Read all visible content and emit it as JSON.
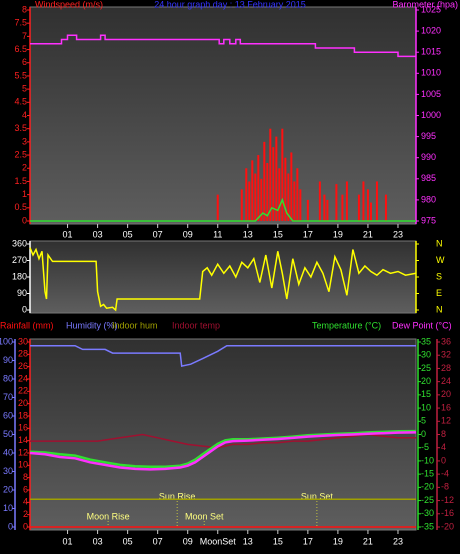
{
  "chart_data": [
    {
      "type": "combo",
      "title": "24 hour graph day : 13 February 2015",
      "xlim": [
        -1.5,
        24.2
      ],
      "xticks": [
        {
          "value": 1,
          "label": "01"
        },
        {
          "value": 3,
          "label": "03"
        },
        {
          "value": 5,
          "label": "05"
        },
        {
          "value": 7,
          "label": "07"
        },
        {
          "value": 9,
          "label": "09"
        },
        {
          "value": 11,
          "label": "11"
        },
        {
          "value": 13,
          "label": "13"
        },
        {
          "value": 15,
          "label": "15"
        },
        {
          "value": 17,
          "label": "17"
        },
        {
          "value": 19,
          "label": "19"
        },
        {
          "value": 21,
          "label": "21"
        },
        {
          "value": 23,
          "label": "23"
        }
      ],
      "axes": [
        {
          "label": "Windspeed (m/s)",
          "color": "#ff2020",
          "lim": [
            0,
            8
          ],
          "ticks": [
            0,
            0.5,
            1,
            1.5,
            2,
            2.5,
            3,
            3.5,
            4,
            4.5,
            5,
            5.5,
            6,
            6.5,
            7,
            7.5,
            8
          ]
        },
        {
          "label": "Barometer (hpa)",
          "color": "#ff30ff",
          "lim": [
            975,
            1025
          ],
          "ticks": [
            975,
            980,
            985,
            990,
            995,
            1000,
            1005,
            1010,
            1015,
            1020,
            1025
          ]
        }
      ],
      "series": [
        {
          "type": "bar",
          "color": "#ff1010",
          "axis": 0,
          "x": [
            11.0,
            12.6,
            12.9,
            13.1,
            13.3,
            13.5,
            13.7,
            13.9,
            14.1,
            14.3,
            14.5,
            14.7,
            14.9,
            15.1,
            15.3,
            15.5,
            15.7,
            15.9,
            16.1,
            16.3,
            16.5,
            17.0,
            17.8,
            18.1,
            18.3,
            18.9,
            19.3,
            19.6,
            20.4,
            20.7,
            21.0,
            21.2,
            21.6,
            22.2
          ],
          "values": [
            1.0,
            1.2,
            2.0,
            1.5,
            2.3,
            1.8,
            2.5,
            1.6,
            3.0,
            2.2,
            3.5,
            2.8,
            3.2,
            2.0,
            3.5,
            2.4,
            1.8,
            2.6,
            1.5,
            2.0,
            1.2,
            0.8,
            1.5,
            1.0,
            0.8,
            1.4,
            1.0,
            1.5,
            1.0,
            1.5,
            1.2,
            0.7,
            1.5,
            1.0
          ]
        },
        {
          "type": "line",
          "color": "#30e030",
          "axis": 0,
          "x": [
            -1.5,
            13.5,
            14.0,
            14.3,
            14.6,
            15.0,
            15.3,
            15.6,
            16.0,
            24.2
          ],
          "values": [
            0,
            0,
            0.3,
            0.2,
            0.5,
            0.4,
            0.8,
            0.3,
            0,
            0
          ]
        },
        {
          "type": "line",
          "color": "#ff30ff",
          "axis": 1,
          "x": [
            -1.5,
            0.6,
            0.6,
            1.0,
            1.0,
            1.6,
            1.6,
            3.2,
            3.2,
            3.5,
            3.5,
            11.1,
            11.1,
            11.4,
            11.4,
            11.8,
            11.8,
            12.2,
            12.2,
            12.5,
            12.5,
            17.5,
            17.5,
            20.1,
            20.1,
            23.0,
            23.0,
            24.2
          ],
          "values": [
            1017,
            1017,
            1018,
            1018,
            1019,
            1019,
            1018,
            1018,
            1019,
            1019,
            1018,
            1018,
            1017,
            1017,
            1018,
            1018,
            1017,
            1017,
            1018,
            1018,
            1017,
            1017,
            1016,
            1016,
            1015,
            1015,
            1014,
            1014
          ]
        }
      ]
    },
    {
      "type": "line",
      "xlim": [
        -1.5,
        24.2
      ],
      "axes": [
        {
          "color": "#ffffff",
          "lim": [
            0,
            360
          ],
          "ticks": [
            0,
            90,
            180,
            270,
            360
          ]
        },
        {
          "color": "#ffff00",
          "lim": [
            0,
            360
          ],
          "ticks": [
            {
              "value": 360,
              "label": "N"
            },
            {
              "value": 270,
              "label": "W"
            },
            {
              "value": 180,
              "label": "S"
            },
            {
              "value": 90,
              "label": "E"
            },
            {
              "value": 0,
              "label": "N"
            }
          ]
        }
      ],
      "series": [
        {
          "type": "line",
          "color": "#ffff00",
          "axis": 0,
          "x": [
            -1.5,
            -1.3,
            -1.1,
            -0.9,
            -0.7,
            -0.5,
            -0.4,
            -0.3,
            0.0,
            2.9,
            3.0,
            3.2,
            3.4,
            3.6,
            4.0,
            4.2,
            4.3,
            9.6,
            9.8,
            10.0,
            10.3,
            10.6,
            11,
            11.4,
            11.8,
            12.2,
            12.6,
            13,
            13.4,
            13.8,
            14.2,
            14.6,
            15,
            15.3,
            15.6,
            16,
            16.4,
            16.8,
            17.2,
            17.6,
            18,
            18.4,
            18.8,
            19.2,
            19.6,
            20,
            20.4,
            20.8,
            21.2,
            21.6,
            22,
            22.5,
            23,
            23.5,
            24.2
          ],
          "values": [
            340,
            300,
            330,
            280,
            320,
            100,
            60,
            300,
            265,
            265,
            100,
            20,
            30,
            10,
            15,
            0,
            60,
            60,
            60,
            210,
            230,
            190,
            250,
            200,
            240,
            180,
            260,
            230,
            280,
            150,
            300,
            120,
            320,
            200,
            60,
            280,
            140,
            230,
            180,
            260,
            200,
            100,
            290,
            220,
            80,
            330,
            200,
            240,
            210,
            190,
            220,
            200,
            210,
            190,
            200
          ]
        }
      ]
    },
    {
      "type": "line",
      "xlim": [
        -1.5,
        24.2
      ],
      "xticks": [
        {
          "value": 1,
          "label": "01"
        },
        {
          "value": 3,
          "label": "03"
        },
        {
          "value": 5,
          "label": "05"
        },
        {
          "value": 7,
          "label": "07"
        },
        {
          "value": 9,
          "label": "09"
        },
        {
          "value": 11,
          "label": "MoonSet"
        },
        {
          "value": 13,
          "label": "13"
        },
        {
          "value": 15,
          "label": "15"
        },
        {
          "value": 17,
          "label": "17"
        },
        {
          "value": 19,
          "label": "19"
        },
        {
          "value": 21,
          "label": "21"
        },
        {
          "value": 23,
          "label": "23"
        }
      ],
      "axes": [
        {
          "color": "#7a7aff",
          "lim": [
            0,
            100
          ],
          "ticks": [
            0,
            10,
            20,
            30,
            40,
            50,
            60,
            70,
            80,
            90,
            100
          ]
        },
        {
          "color": "#ff2020",
          "lim": [
            0,
            30
          ],
          "ticks": [
            0,
            2,
            4,
            6,
            8,
            10,
            12,
            14,
            16,
            18,
            20,
            22,
            24,
            26,
            28,
            30
          ]
        },
        {
          "color": "#30e030",
          "lim": [
            -35,
            35
          ],
          "ticks": [
            -35,
            -30,
            -25,
            -20,
            -15,
            -10,
            -5,
            0,
            5,
            10,
            15,
            20,
            25,
            30,
            35
          ]
        },
        {
          "color": "#c02040",
          "lim": [
            -20,
            36
          ],
          "ticks": [
            -20,
            -16,
            -12,
            -8,
            -4,
            0,
            4,
            8,
            12,
            16,
            20,
            24,
            28,
            32,
            36
          ]
        }
      ],
      "series": [
        {
          "name": "Rainfall (mm)",
          "color": "#ff1010",
          "axis": 1,
          "x": [
            -1.5,
            24.2
          ],
          "values": [
            0,
            0
          ]
        },
        {
          "name": "Humidity (%)",
          "color": "#7a7aff",
          "axis": 0,
          "x": [
            -1.5,
            1.5,
            2.0,
            3.5,
            4.0,
            8.5,
            8.6,
            9.2,
            10,
            11,
            11.6,
            24.2
          ],
          "values": [
            98,
            98,
            96,
            96,
            94,
            94,
            87,
            88,
            91,
            95,
            98,
            98
          ]
        },
        {
          "name": "Indoor hum",
          "color": "#a0a000",
          "axis": 0,
          "x": [
            -1.5,
            24.2
          ],
          "values": [
            15,
            15
          ]
        },
        {
          "name": "Indoor temp",
          "color": "#a01030",
          "axis": 3,
          "x": [
            -1.5,
            1,
            3,
            4.5,
            6,
            7,
            8,
            9,
            10,
            11,
            12,
            13,
            14,
            15,
            16,
            17,
            18,
            19,
            20,
            21,
            22,
            23,
            24.2
          ],
          "values": [
            6,
            6,
            6,
            7,
            8,
            7,
            6,
            5,
            4.5,
            4,
            5,
            5,
            5.5,
            5.5,
            6,
            6,
            6.5,
            7,
            7.5,
            8,
            7.5,
            7,
            7
          ]
        },
        {
          "name": "Temperature (°C)",
          "color": "#30e030",
          "axis": 2,
          "x": [
            -1.5,
            -0.5,
            0.5,
            1.5,
            2.5,
            3.5,
            4.5,
            5.5,
            6.5,
            7.5,
            8.5,
            9.0,
            9.5,
            10.0,
            10.5,
            11.0,
            11.5,
            12,
            13,
            14,
            15,
            16,
            17,
            18,
            19,
            20,
            21,
            22,
            23,
            24.2
          ],
          "values": [
            -6.5,
            -6.8,
            -7.5,
            -8,
            -9.5,
            -10.5,
            -11.5,
            -12,
            -12.2,
            -12.2,
            -11.8,
            -11,
            -9.5,
            -7.5,
            -5.5,
            -3.5,
            -2.2,
            -1.8,
            -1.8,
            -1.5,
            -1.2,
            -0.8,
            -0.3,
            0,
            0.3,
            0.5,
            0.8,
            1,
            1.2,
            1.3
          ]
        },
        {
          "name": "Dew Point (°C)",
          "color": "#ff30ff",
          "axis": 2,
          "x": [
            -1.5,
            -0.5,
            0.5,
            1.5,
            2.5,
            3.5,
            4.5,
            5.5,
            6.5,
            7.5,
            8.5,
            9.0,
            9.5,
            10.0,
            10.5,
            11.0,
            11.5,
            12,
            13,
            14,
            15,
            16,
            17,
            18,
            19,
            20,
            21,
            22,
            23,
            24.2
          ],
          "values": [
            -7,
            -7.5,
            -8.5,
            -9,
            -10.5,
            -11.5,
            -12.5,
            -13,
            -13.2,
            -13,
            -12.5,
            -11.8,
            -10.5,
            -8.5,
            -6.5,
            -4.5,
            -3,
            -2.5,
            -2.3,
            -2,
            -1.7,
            -1.3,
            -0.8,
            -0.5,
            -0.2,
            0,
            0.3,
            0.5,
            0.7,
            0.8
          ]
        }
      ],
      "annotations": [
        {
          "text": "Sun Rise",
          "x": 8.3
        },
        {
          "text": "Sun Set",
          "x": 17.6
        },
        {
          "text": "Moon Rise",
          "x": 3.7
        },
        {
          "text": "Moon Set",
          "x": 10.1
        }
      ]
    }
  ]
}
